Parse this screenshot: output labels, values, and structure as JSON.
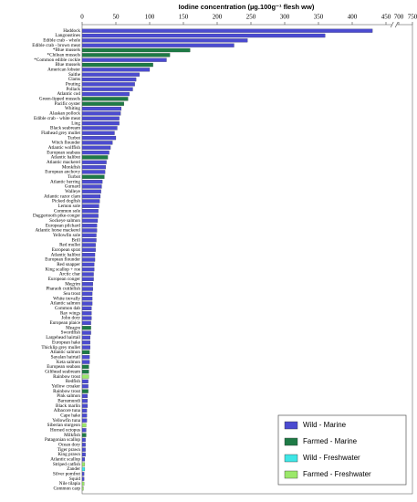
{
  "chart_data": {
    "type": "barh",
    "title": "Iodine concentration (µg.100g⁻¹ flesh ww)",
    "categories": [
      "Haddock",
      "Langoustines",
      "Edible crab - whole",
      "Edible crab - brown meat",
      "*Blue mussels",
      "*Chilean mussels",
      "*Common edible cockle",
      "Blue mussels",
      "American lobster",
      "Saithe",
      "Clams",
      "Pouting",
      "Pollack",
      "Atlantic cod",
      "Green-lipped mussels",
      "Pacific oyster",
      "Whiting",
      "Alaskan pollock",
      "Edible crab - white meat",
      "Ling",
      "Black seabream",
      "Flathead grey mullet",
      "Turbot",
      "Witch flounder",
      "Atlantic wolffish",
      "European seabass",
      "Atlantic halibut",
      "Atlantic mackerel",
      "Monkfish",
      "European anchovy",
      "Turbot",
      "Atlantic herring",
      "Gurnard",
      "Walleye",
      "Atlantic razor clam",
      "Picked dogfish",
      "Lemon sole",
      "Common sole",
      "Daggertooth pike-conger",
      "Sockeye salmon",
      "European pilchard",
      "Atlantic horse mackerel",
      "Yellowfin sole",
      "Brill",
      "Red mullet",
      "European sprat",
      "Atlantic halibut",
      "European flounder",
      "Red snapper",
      "King scallop + roe",
      "Arctic char",
      "European conger",
      "Megrim",
      "Pharaoh cuttlefish",
      "Sea trout",
      "White trevally",
      "Atlantic salmon",
      "Common dab",
      "Ray wings",
      "John dory",
      "European plaice",
      "Meagre",
      "Swordfish",
      "Largehead hairtail",
      "European hake",
      "Thicklip grey mullet",
      "Atlantic salmon",
      "Sayalan hairtail",
      "Keta salmon",
      "European seabass",
      "Gilthead seabream",
      "Rainbow trout",
      "Redfish",
      "Yellow croaker",
      "Rainbow trout",
      "Pink salmon",
      "Barramundi",
      "Black marlin",
      "Albacore tuna",
      "Cape hake",
      "Yellowfin tuna",
      "Siberian sturgeon",
      "Horned octopus",
      "Milkfish",
      "Patagonian scallop",
      "Ocean dory",
      "Tiger prawn",
      "King prawn",
      "Atlantic scallop",
      "Striped catfish",
      "Zander",
      "Silver pomfret",
      "Squid",
      "Nile tilapia",
      "Common carp"
    ],
    "values": [
      430,
      360,
      245,
      225,
      160,
      130,
      125,
      105,
      100,
      85,
      80,
      78,
      75,
      70,
      68,
      62,
      58,
      57,
      55,
      55,
      52,
      48,
      50,
      45,
      42,
      40,
      38,
      36,
      35,
      34,
      33,
      30,
      29,
      28,
      27,
      26,
      25,
      24,
      24,
      23,
      22,
      22,
      21,
      21,
      20,
      20,
      19,
      19,
      18,
      18,
      17,
      17,
      16,
      16,
      15,
      15,
      15,
      14,
      14,
      14,
      13,
      13,
      13,
      12,
      12,
      12,
      11,
      11,
      11,
      10,
      10,
      10,
      9,
      9,
      9,
      8,
      8,
      8,
      7,
      7,
      7,
      6,
      6,
      6,
      5,
      5,
      5,
      5,
      4,
      4,
      4,
      3,
      3,
      3,
      2
    ],
    "colors": [
      "#4b4bd0",
      "#4b4bd0",
      "#4b4bd0",
      "#4b4bd0",
      "#1e7a46",
      "#1e7a46",
      "#4b4bd0",
      "#1e7a46",
      "#4b4bd0",
      "#4b4bd0",
      "#4b4bd0",
      "#4b4bd0",
      "#4b4bd0",
      "#4b4bd0",
      "#1e7a46",
      "#1e7a46",
      "#4b4bd0",
      "#4b4bd0",
      "#4b4bd0",
      "#4b4bd0",
      "#4b4bd0",
      "#4b4bd0",
      "#4b4bd0",
      "#4b4bd0",
      "#4b4bd0",
      "#4b4bd0",
      "#1e7a46",
      "#4b4bd0",
      "#4b4bd0",
      "#4b4bd0",
      "#1e7a46",
      "#4b4bd0",
      "#4b4bd0",
      "#4b4bd0",
      "#4b4bd0",
      "#4b4bd0",
      "#4b4bd0",
      "#4b4bd0",
      "#4b4bd0",
      "#4b4bd0",
      "#4b4bd0",
      "#4b4bd0",
      "#4b4bd0",
      "#4b4bd0",
      "#4b4bd0",
      "#4b4bd0",
      "#4b4bd0",
      "#4b4bd0",
      "#4b4bd0",
      "#4b4bd0",
      "#4b4bd0",
      "#4b4bd0",
      "#4b4bd0",
      "#4b4bd0",
      "#4b4bd0",
      "#4b4bd0",
      "#4b4bd0",
      "#4b4bd0",
      "#4b4bd0",
      "#4b4bd0",
      "#4b4bd0",
      "#1e7a46",
      "#4b4bd0",
      "#4b4bd0",
      "#4b4bd0",
      "#4b4bd0",
      "#1e7a46",
      "#4b4bd0",
      "#4b4bd0",
      "#1e7a46",
      "#1e7a46",
      "#9be86a",
      "#4b4bd0",
      "#4b4bd0",
      "#1e7a46",
      "#4b4bd0",
      "#4b4bd0",
      "#4b4bd0",
      "#4b4bd0",
      "#4b4bd0",
      "#4b4bd0",
      "#9be86a",
      "#4b4bd0",
      "#1e7a46",
      "#4b4bd0",
      "#4b4bd0",
      "#4b4bd0",
      "#4b4bd0",
      "#4b4bd0",
      "#9be86a",
      "#3ee6e6",
      "#4b4bd0",
      "#4b4bd0",
      "#9be86a",
      "#9be86a"
    ],
    "legend": [
      {
        "name": "Wild - Marine",
        "color": "#4b4bd0"
      },
      {
        "name": "Farmed - Marine",
        "color": "#1e7a46"
      },
      {
        "name": "Wild - Freshwater",
        "color": "#3ee6e6"
      },
      {
        "name": "Farmed - Freshwater",
        "color": "#9be86a"
      }
    ],
    "xlim": [
      0,
      750
    ],
    "xticks": [
      0,
      50,
      100,
      150,
      200,
      250,
      300,
      350,
      400,
      450,
      700,
      750
    ],
    "axis_break": [
      460,
      690
    ]
  }
}
